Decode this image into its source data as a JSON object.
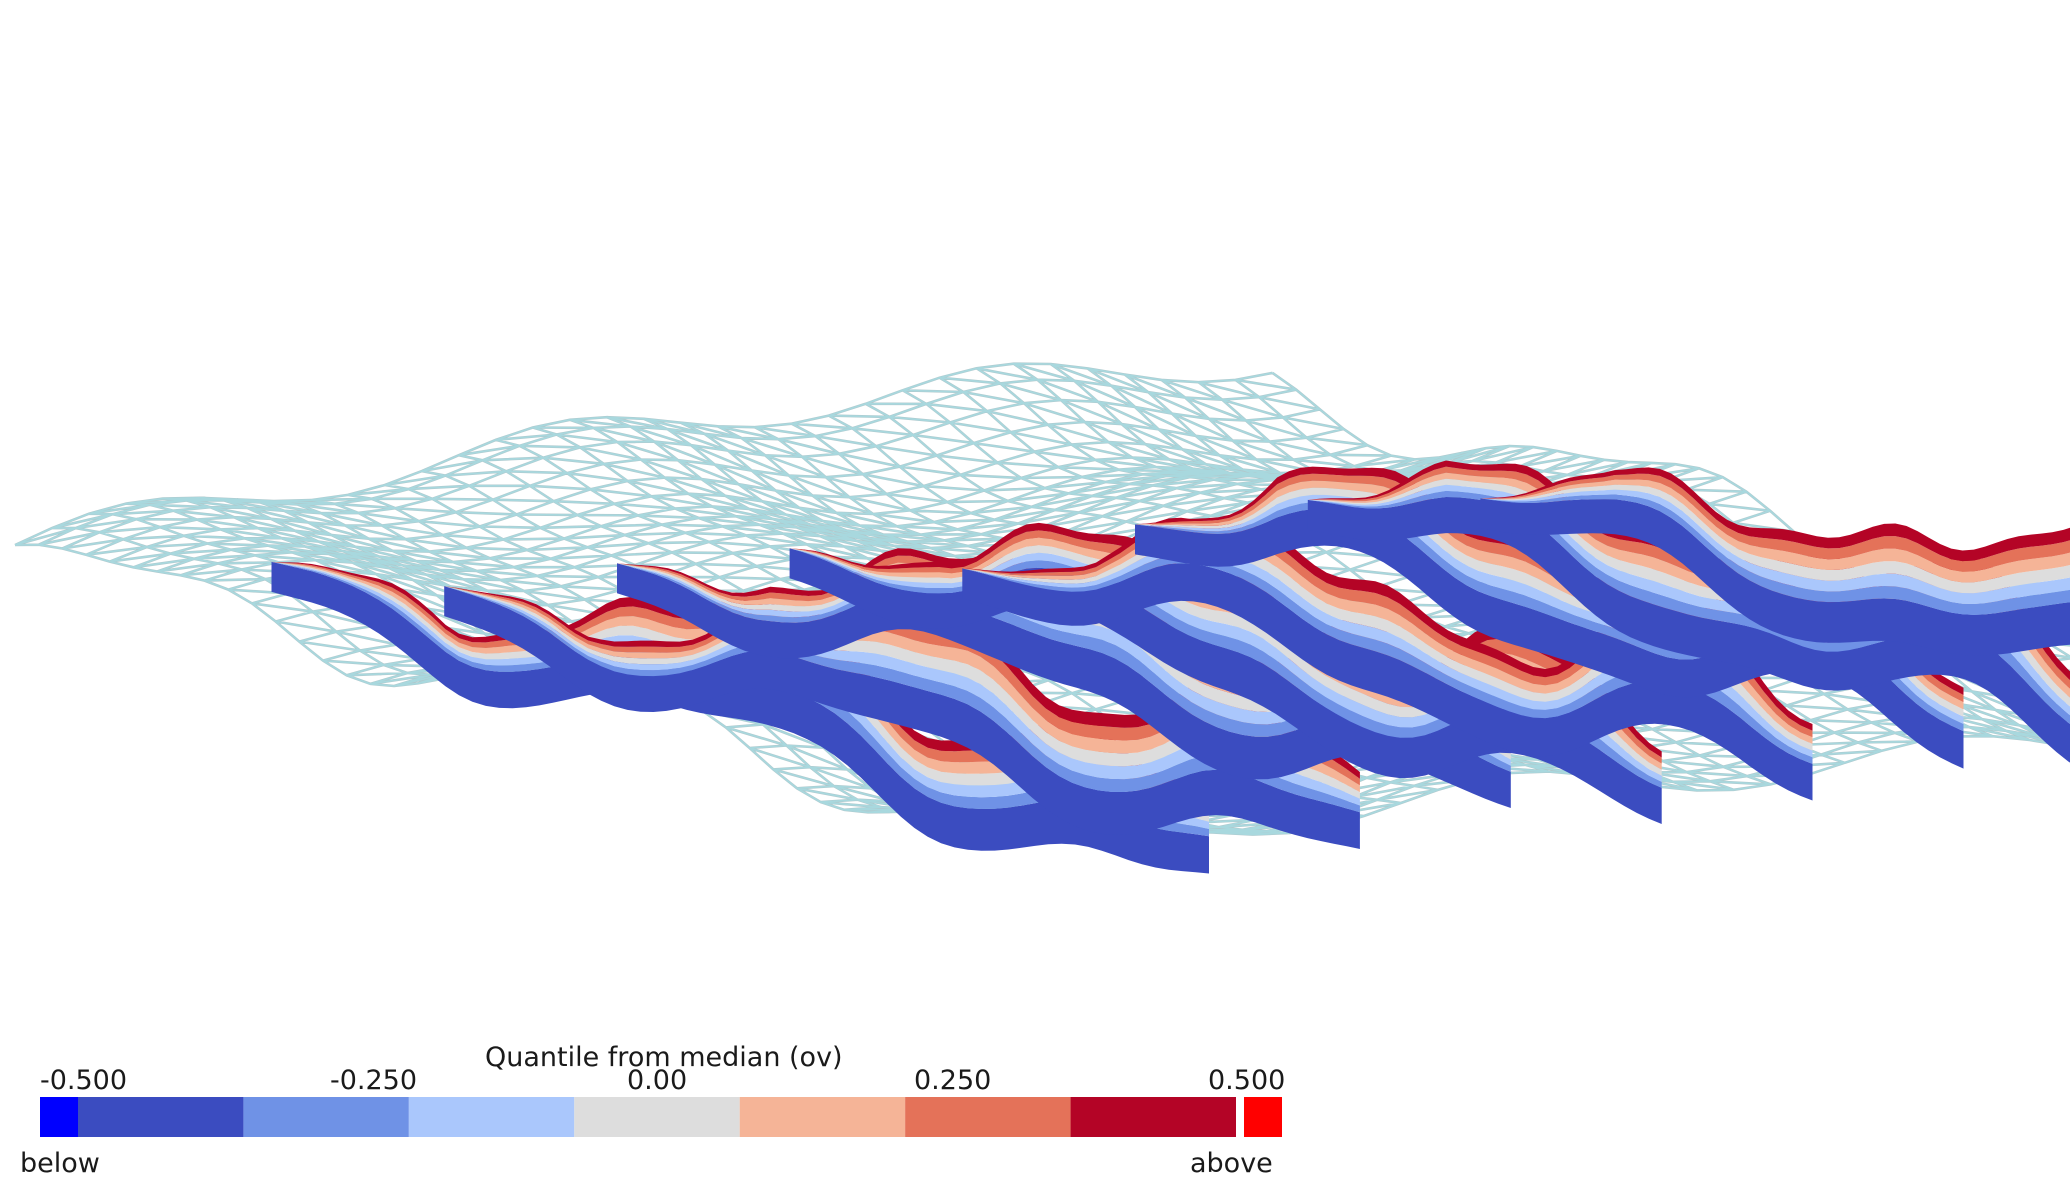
{
  "figure": {
    "description_free": true,
    "mesh_color": "#a8d8de",
    "mesh_shadow": "#6f9aa3"
  },
  "legend": {
    "title": "Quantile from median (ov)",
    "tick_labels": [
      "-0.500",
      "-0.250",
      "0.00",
      "0.250",
      "0.500"
    ],
    "below_label": "below",
    "above_label": "above",
    "bins": [
      {
        "color": "#0000ff",
        "role": "below"
      },
      {
        "color": "#3b4cc0"
      },
      {
        "color": "#6f92e6"
      },
      {
        "color": "#aac7fc"
      },
      {
        "color": "#dddddd"
      },
      {
        "color": "#f5b497"
      },
      {
        "color": "#e47259"
      },
      {
        "color": "#b40426"
      },
      {
        "color": "#ff0000",
        "role": "above"
      }
    ]
  }
}
